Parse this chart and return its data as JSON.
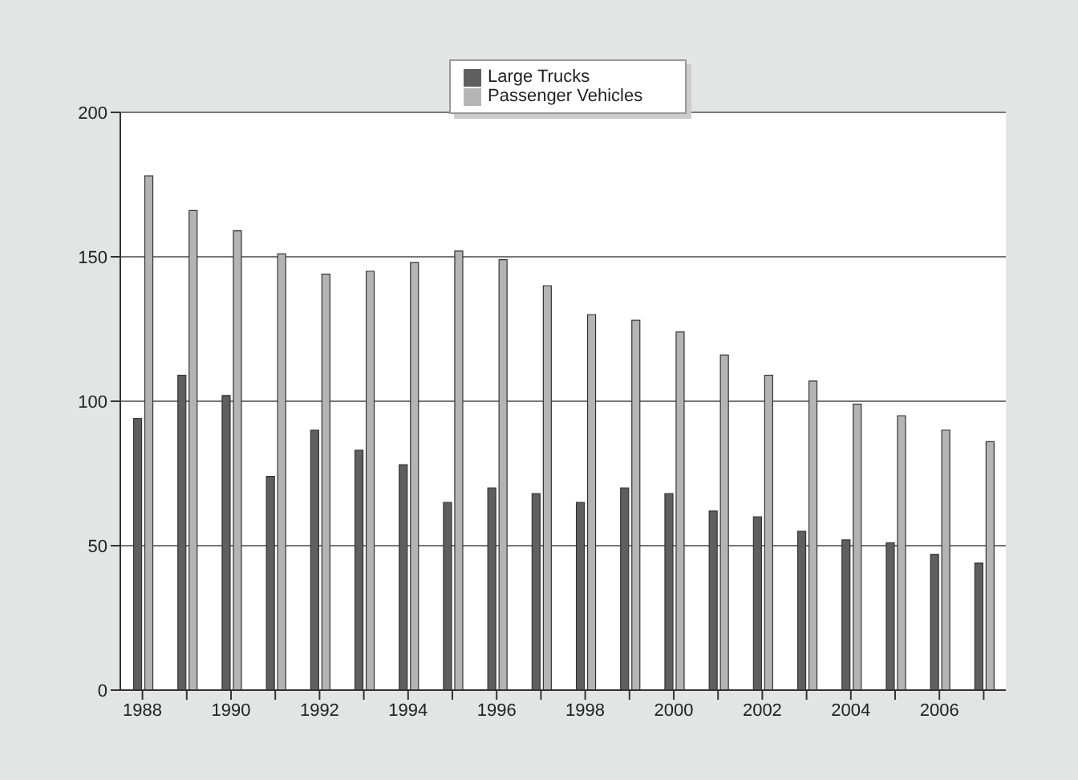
{
  "chart_data": {
    "type": "bar",
    "categories": [
      "1988",
      null,
      "1990",
      null,
      "1992",
      null,
      "1994",
      null,
      "1996",
      null,
      "1998",
      null,
      "2000",
      null,
      "2002",
      null,
      "2004",
      null,
      "2006",
      null
    ],
    "series": [
      {
        "name": "Large Trucks",
        "color": "#5f5f5f",
        "values": [
          94,
          109,
          102,
          74,
          90,
          83,
          78,
          65,
          70,
          68,
          65,
          70,
          68,
          62,
          60,
          55,
          52,
          51,
          47,
          44
        ]
      },
      {
        "name": "Passenger Vehicles",
        "color": "#b4b4b4",
        "values": [
          178,
          166,
          159,
          151,
          144,
          145,
          148,
          152,
          149,
          140,
          130,
          128,
          124,
          116,
          109,
          107,
          99,
          95,
          90,
          86
        ]
      }
    ],
    "ylim": [
      0,
      200
    ],
    "yticks": [
      0,
      50,
      100,
      150,
      200
    ],
    "grid": "y",
    "legend": "top"
  }
}
